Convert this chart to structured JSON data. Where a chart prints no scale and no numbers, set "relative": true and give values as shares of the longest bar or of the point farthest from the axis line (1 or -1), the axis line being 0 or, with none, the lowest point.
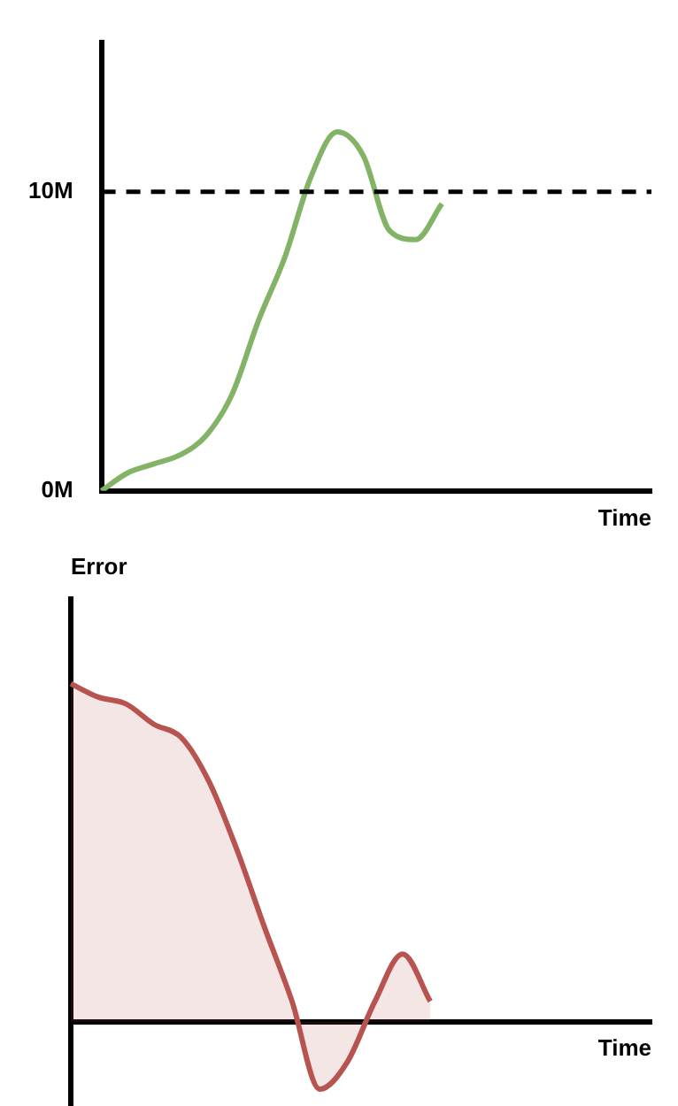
{
  "chart_data": [
    {
      "type": "line",
      "xlabel": "Time",
      "categories": [
        null,
        null,
        null,
        null,
        null,
        null,
        null,
        null,
        null,
        null,
        null,
        null,
        null,
        null,
        null,
        null,
        null,
        null,
        null,
        null,
        null,
        null
      ],
      "series": [
        {
          "color": "#82b366",
          "values": [
            0,
            0.6,
            0.9,
            1.2,
            1.85,
            3.25,
            5.7,
            7.8,
            10.5,
            12,
            11.2,
            8.7,
            8.4,
            9.6,
            null,
            null,
            null,
            null,
            null,
            null,
            null,
            null
          ]
        }
      ],
      "ylim": [
        0,
        15
      ],
      "yticks": [
        {
          "value": 0,
          "label": "0M"
        },
        {
          "value": 10,
          "label": "10M"
        }
      ],
      "ref_lines": [
        {
          "axis": "y",
          "value": 10,
          "color": "#000000",
          "line_style": "dashed"
        }
      ],
      "grid": false,
      "legend": false,
      "marker": "none",
      "tick_labels": "y"
    },
    {
      "type": "area",
      "ylabel": "Error",
      "xlabel": "Time",
      "relative": true,
      "categories": [
        null,
        null,
        null,
        null,
        null,
        null,
        null,
        null,
        null,
        null,
        null,
        null,
        null,
        null,
        null,
        null,
        null,
        null,
        null,
        null,
        null,
        null
      ],
      "series": [
        {
          "color": "#b85450",
          "values": [
            1,
            0.96,
            0.94,
            0.88,
            0.84,
            0.71,
            0.51,
            0.28,
            0.06,
            -0.2,
            -0.12,
            0.06,
            0.2,
            0.06,
            null,
            null,
            null,
            null,
            null,
            null,
            null,
            null
          ]
        }
      ],
      "grid": false,
      "legend": false,
      "marker": "none",
      "tick_labels": false
    }
  ]
}
